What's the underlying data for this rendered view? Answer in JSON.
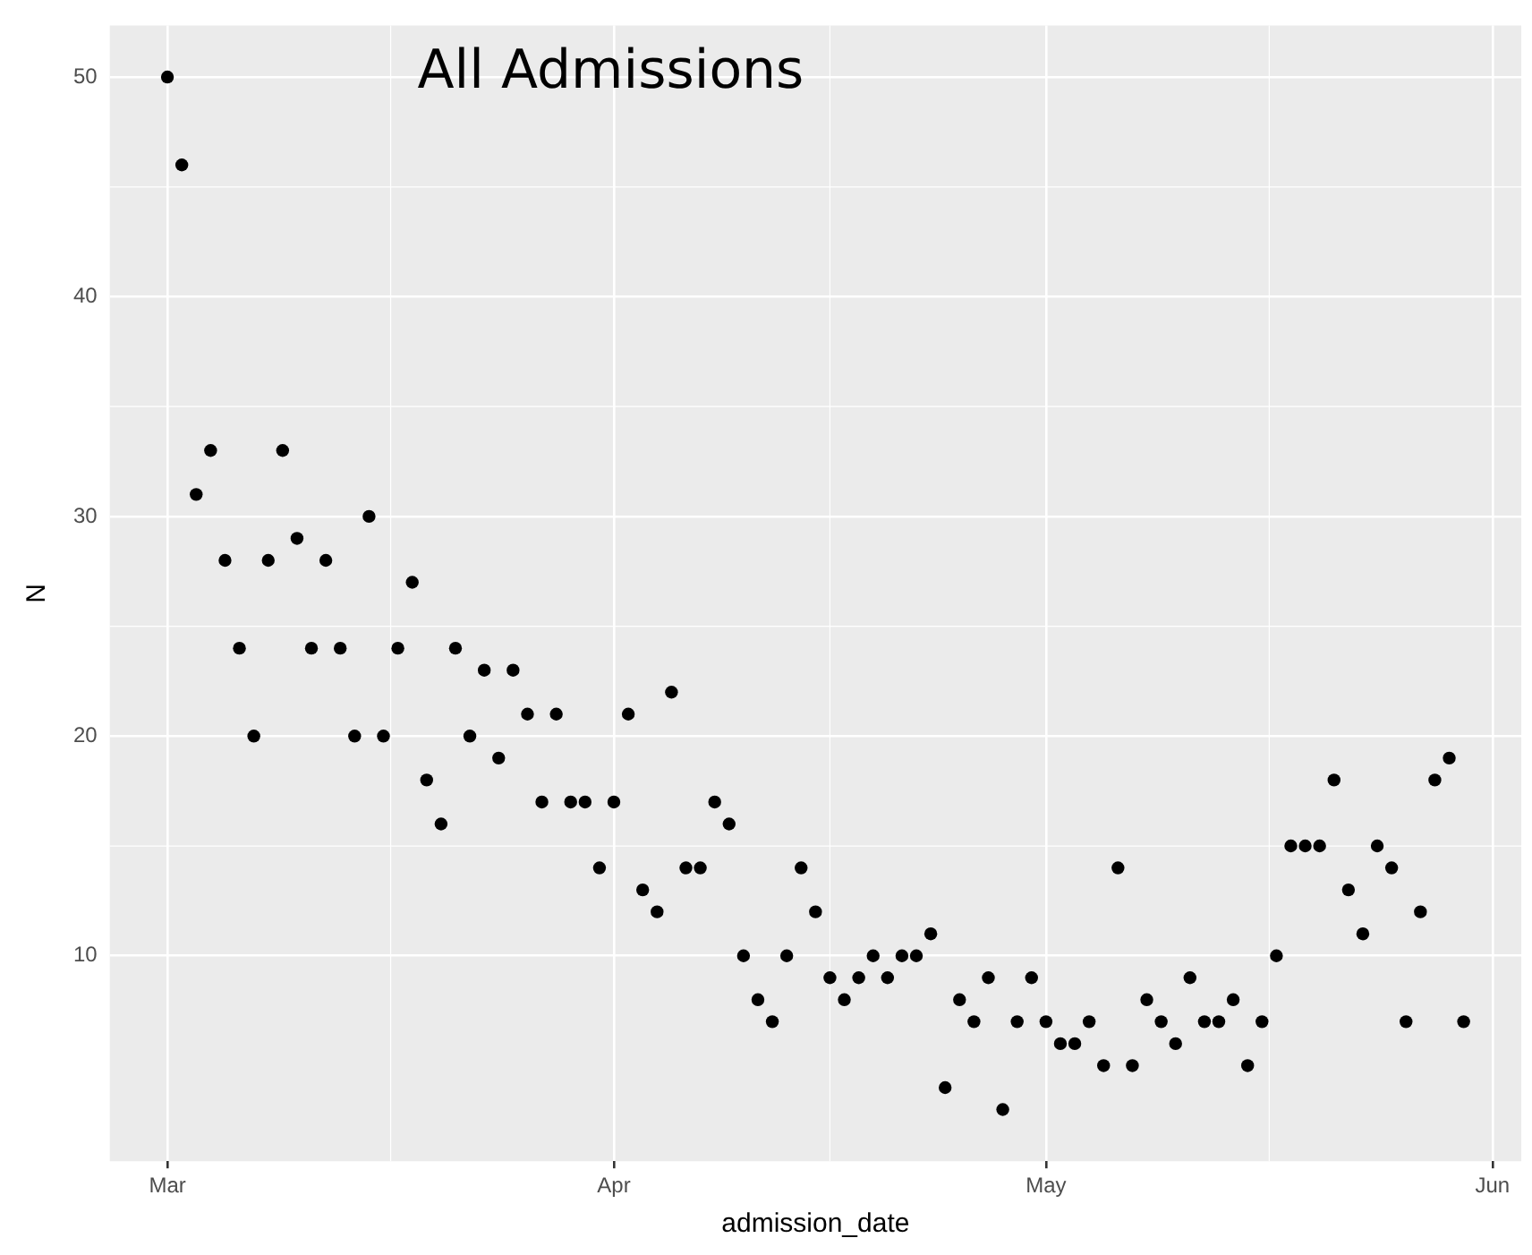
{
  "chart_data": {
    "type": "scatter",
    "title": "All Admissions",
    "xlabel": "admission_date",
    "ylabel": "N",
    "x": [
      "--03-01",
      "--03-02",
      "--03-03",
      "--03-04",
      "--03-05",
      "--03-06",
      "--03-07",
      "--03-08",
      "--03-09",
      "--03-10",
      "--03-11",
      "--03-12",
      "--03-13",
      "--03-14",
      "--03-15",
      "--03-16",
      "--03-17",
      "--03-18",
      "--03-19",
      "--03-20",
      "--03-21",
      "--03-22",
      "--03-23",
      "--03-24",
      "--03-25",
      "--03-26",
      "--03-27",
      "--03-28",
      "--03-29",
      "--03-30",
      "--03-31",
      "--04-01",
      "--04-02",
      "--04-03",
      "--04-04",
      "--04-05",
      "--04-06",
      "--04-07",
      "--04-08",
      "--04-09",
      "--04-10",
      "--04-11",
      "--04-12",
      "--04-13",
      "--04-14",
      "--04-15",
      "--04-16",
      "--04-17",
      "--04-18",
      "--04-19",
      "--04-20",
      "--04-21",
      "--04-22",
      "--04-23",
      "--04-24",
      "--04-25",
      "--04-26",
      "--04-27",
      "--04-28",
      "--04-29",
      "--04-30",
      "--05-01",
      "--05-02",
      "--05-03",
      "--05-04",
      "--05-05",
      "--05-06",
      "--05-07",
      "--05-08",
      "--05-09",
      "--05-10",
      "--05-11",
      "--05-12",
      "--05-13",
      "--05-14",
      "--05-15",
      "--05-16",
      "--05-17",
      "--05-18",
      "--05-19",
      "--05-20",
      "--05-21",
      "--05-22",
      "--05-23",
      "--05-24",
      "--05-25",
      "--05-26",
      "--05-27",
      "--05-28",
      "--05-29",
      "--05-30"
    ],
    "series": [
      {
        "color": "#000000",
        "values": [
          50,
          46,
          31,
          33,
          28,
          24,
          20,
          28,
          33,
          29,
          24,
          28,
          24,
          20,
          30,
          20,
          24,
          27,
          18,
          16,
          24,
          20,
          23,
          19,
          23,
          21,
          17,
          21,
          17,
          17,
          14,
          17,
          21,
          13,
          12,
          22,
          14,
          14,
          17,
          16,
          10,
          8,
          7,
          10,
          14,
          12,
          9,
          8,
          9,
          10,
          9,
          10,
          10,
          11,
          4,
          8,
          7,
          9,
          3,
          7,
          9,
          7,
          6,
          6,
          7,
          5,
          14,
          5,
          8,
          7,
          6,
          9,
          7,
          7,
          8,
          5,
          7,
          10,
          15,
          15,
          15,
          18,
          13,
          11,
          15,
          14,
          7,
          12,
          18,
          19,
          7
        ]
      }
    ],
    "xlim": [
      "--02-25",
      "--06-03"
    ],
    "xticks": [
      {
        "value": "--03-01",
        "label": "Mar"
      },
      {
        "value": "--04-01",
        "label": "Apr"
      },
      {
        "value": "--05-01",
        "label": "May"
      },
      {
        "value": "--06-01",
        "label": "Jun"
      }
    ],
    "ylim": [
      0.65,
      52.35
    ],
    "yticks": [
      10,
      20,
      30,
      40,
      50
    ],
    "grid": true,
    "legend": false,
    "marker": "circle"
  }
}
